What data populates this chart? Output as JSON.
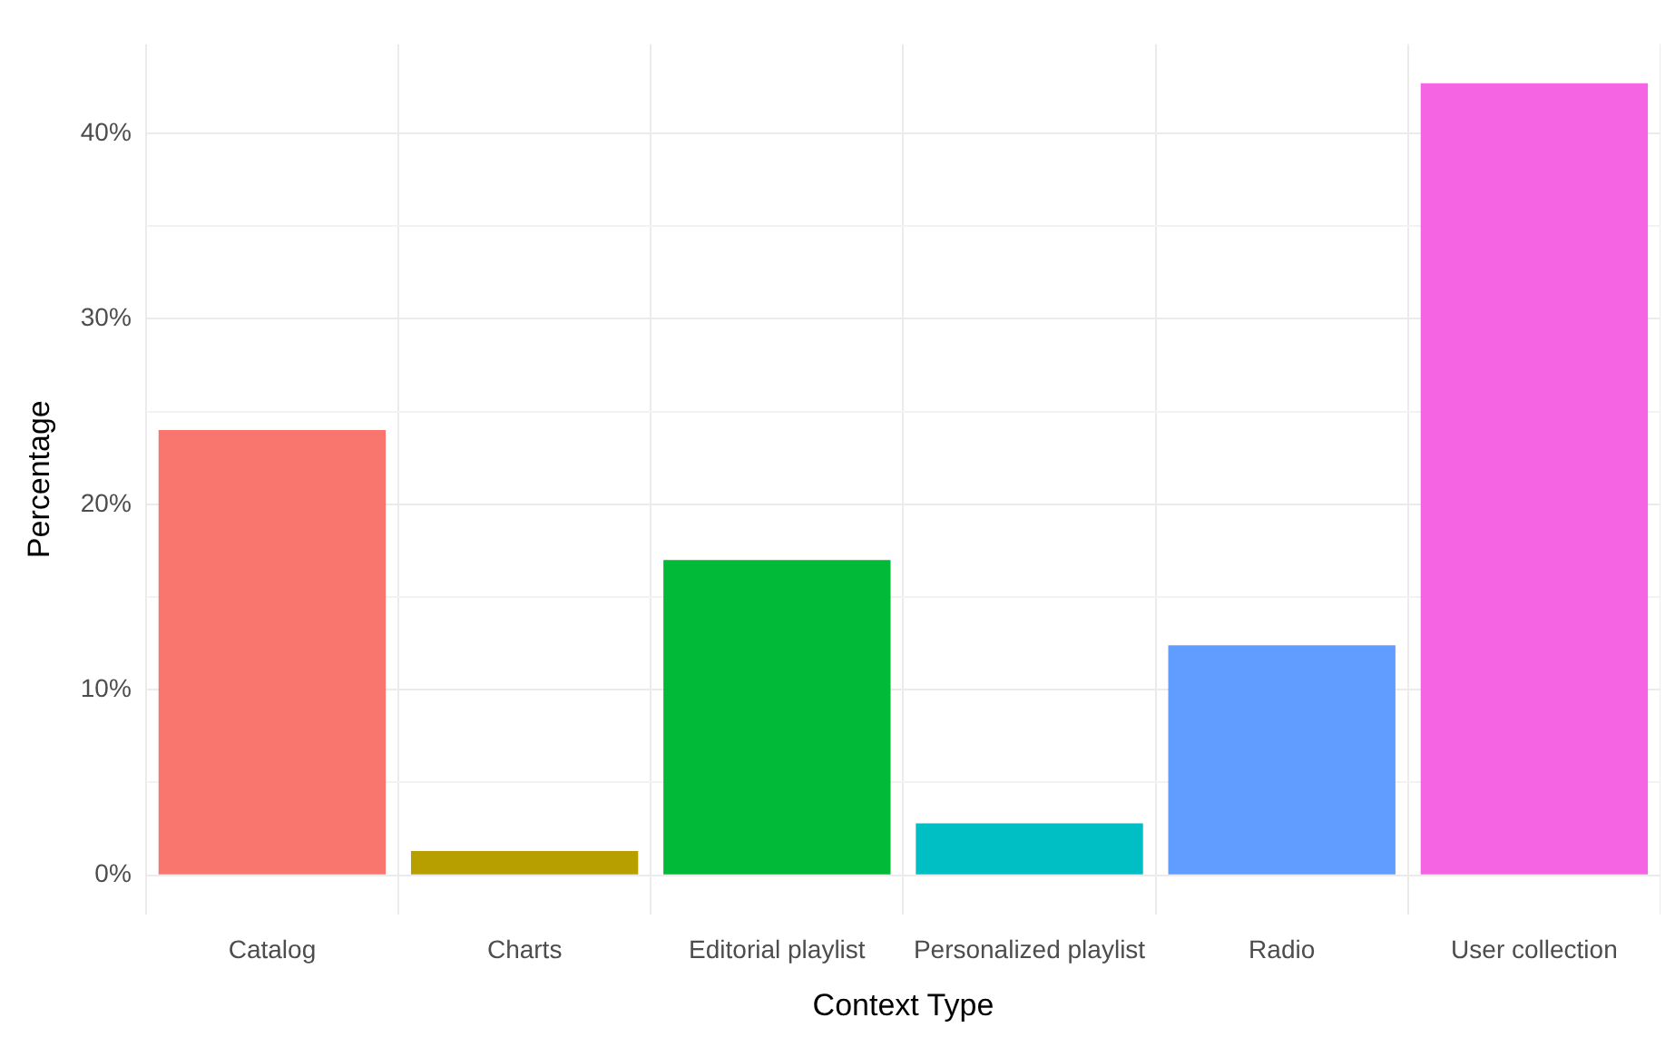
{
  "chart_data": {
    "type": "bar",
    "xlabel": "Context Type",
    "ylabel": "Percentage",
    "categories": [
      "Catalog",
      "Charts",
      "Editorial playlist",
      "Personalized playlist",
      "Radio",
      "User collection"
    ],
    "values": [
      24.0,
      1.3,
      17.0,
      2.8,
      12.4,
      42.7
    ],
    "colors": [
      "#f8766d",
      "#b79f00",
      "#00ba38",
      "#00bfc4",
      "#619cff",
      "#f564e3"
    ],
    "ylim": [
      -2.1,
      44.8
    ],
    "yticks": [
      {
        "value": 0,
        "label": "0%"
      },
      {
        "value": 5,
        "label": null
      },
      {
        "value": 10,
        "label": "10%"
      },
      {
        "value": 15,
        "label": null
      },
      {
        "value": 20,
        "label": "20%"
      },
      {
        "value": 25,
        "label": null
      },
      {
        "value": 30,
        "label": "30%"
      },
      {
        "value": 35,
        "label": null
      },
      {
        "value": 40,
        "label": "40%"
      }
    ],
    "grid": true,
    "legend": false
  }
}
